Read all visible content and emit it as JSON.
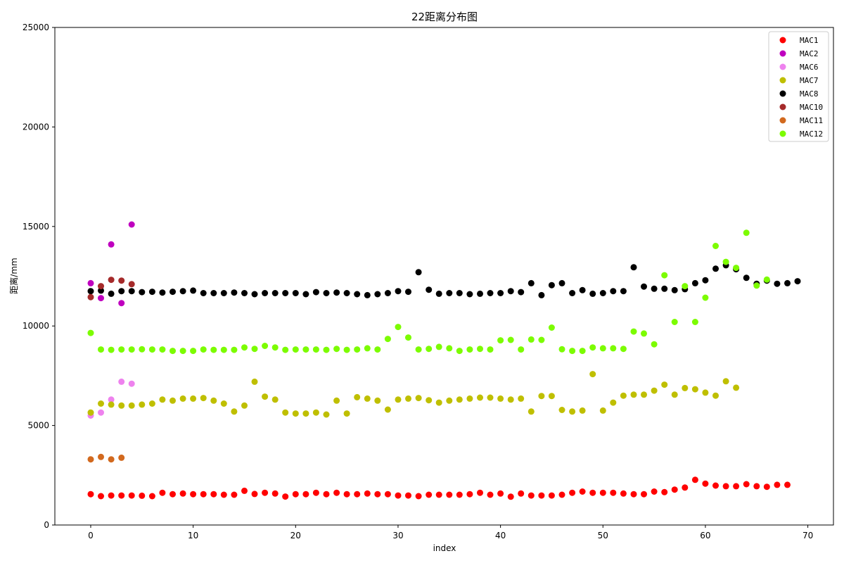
{
  "chart_data": {
    "type": "scatter",
    "title": "22距离分布图",
    "xlabel": "index",
    "ylabel": "距离/mm",
    "xlim": [
      -3.5,
      72.5
    ],
    "ylim": [
      0,
      25000
    ],
    "xticks": [
      0,
      10,
      20,
      30,
      40,
      50,
      60,
      70
    ],
    "yticks": [
      0,
      5000,
      10000,
      15000,
      20000,
      25000
    ],
    "legend_position": "top-right",
    "grid": false,
    "series": [
      {
        "name": "MAC1",
        "color": "#ff0000",
        "values": [
          1550,
          1450,
          1480,
          1480,
          1480,
          1470,
          1450,
          1620,
          1550,
          1580,
          1550,
          1550,
          1550,
          1520,
          1520,
          1720,
          1560,
          1620,
          1580,
          1430,
          1550,
          1550,
          1620,
          1550,
          1620,
          1550,
          1550,
          1580,
          1550,
          1550,
          1480,
          1480,
          1450,
          1520,
          1520,
          1520,
          1520,
          1550,
          1620,
          1520,
          1580,
          1420,
          1580,
          1480,
          1480,
          1480,
          1520,
          1620,
          1680,
          1620,
          1620,
          1620,
          1580,
          1550,
          1550,
          1680,
          1650,
          1780,
          1880,
          2270,
          2080,
          1980,
          1950,
          1950,
          2050,
          1950,
          1920,
          2020,
          2020
        ]
      },
      {
        "name": "MAC2",
        "color": "#bf00bf",
        "values": [
          12150,
          11400,
          14100,
          11150,
          15100
        ]
      },
      {
        "name": "MAC6",
        "color": "#ee82ee",
        "values": [
          5500,
          5650,
          6300,
          7200,
          7100
        ]
      },
      {
        "name": "MAC7",
        "color": "#bfbf00",
        "values": [
          5650,
          6100,
          6050,
          6000,
          6000,
          6050,
          6100,
          6300,
          6250,
          6350,
          6350,
          6380,
          6250,
          6100,
          5700,
          6000,
          7200,
          6450,
          6300,
          5650,
          5600,
          5600,
          5650,
          5550,
          6250,
          5600,
          6420,
          6350,
          6250,
          5800,
          6300,
          6350,
          6380,
          6270,
          6150,
          6250,
          6300,
          6350,
          6400,
          6400,
          6350,
          6300,
          6350,
          5700,
          6480,
          6480,
          5780,
          5700,
          5750,
          7580,
          5750,
          6150,
          6500,
          6550,
          6550,
          6750,
          7050,
          6550,
          6880,
          6820,
          6650,
          6500,
          7220,
          6900
        ]
      },
      {
        "name": "MAC8",
        "color": "#000000",
        "values": [
          11750,
          11780,
          11620,
          11750,
          11750,
          11700,
          11720,
          11680,
          11720,
          11750,
          11780,
          11650,
          11650,
          11650,
          11680,
          11650,
          11600,
          11650,
          11650,
          11650,
          11650,
          11600,
          11700,
          11650,
          11680,
          11650,
          11600,
          11550,
          11600,
          11650,
          11750,
          11720,
          12700,
          11820,
          11620,
          11650,
          11650,
          11600,
          11620,
          11650,
          11650,
          11750,
          11700,
          12150,
          11550,
          12050,
          12150,
          11650,
          11800,
          11620,
          11650,
          11750,
          11750,
          12950,
          11980,
          11870,
          11870,
          11800,
          11850,
          12150,
          12300,
          12880,
          13050,
          12850,
          12420,
          12120,
          12280,
          12120,
          12150,
          12250
        ]
      },
      {
        "name": "MAC10",
        "color": "#a52a2a",
        "values": [
          11450,
          12000,
          12320,
          12280,
          12100
        ]
      },
      {
        "name": "MAC11",
        "color": "#d2691e",
        "values": [
          3300,
          3420,
          3300,
          3380
        ]
      },
      {
        "name": "MAC12",
        "color": "#7cfc00",
        "values": [
          9650,
          8820,
          8800,
          8820,
          8820,
          8830,
          8820,
          8820,
          8750,
          8750,
          8750,
          8820,
          8800,
          8800,
          8800,
          8920,
          8850,
          9000,
          8920,
          8800,
          8820,
          8820,
          8820,
          8800,
          8850,
          8800,
          8820,
          8880,
          8820,
          9350,
          9950,
          9420,
          8820,
          8850,
          8950,
          8880,
          8750,
          8820,
          8850,
          8820,
          9280,
          9300,
          8820,
          9320,
          9300,
          9920,
          8830,
          8750,
          8750,
          8920,
          8880,
          8880,
          8850,
          9720,
          9620,
          9080,
          12550,
          10200,
          12000,
          10200,
          11420,
          14020,
          13220,
          12920,
          14680,
          12030,
          12330
        ]
      }
    ]
  }
}
